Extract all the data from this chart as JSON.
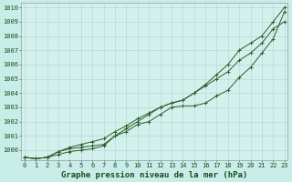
{
  "title": "Graphe pression niveau de la mer (hPa)",
  "background_color": "#c8ede8",
  "plot_bg_color": "#d4f0ec",
  "grid_color": "#a8d8d0",
  "line_color": "#2a5e2a",
  "x_values": [
    0,
    1,
    2,
    3,
    4,
    5,
    6,
    7,
    8,
    9,
    10,
    11,
    12,
    13,
    14,
    15,
    16,
    17,
    18,
    19,
    20,
    21,
    22,
    23
  ],
  "line_top": [
    999.5,
    999.4,
    999.5,
    999.7,
    999.9,
    1000.0,
    1000.1,
    1000.3,
    1001.0,
    1001.5,
    1002.0,
    1002.5,
    1003.0,
    1003.3,
    1003.5,
    1004.0,
    1004.6,
    1005.3,
    1006.0,
    1007.0,
    1007.5,
    1008.0,
    1009.0,
    1010.0
  ],
  "line_mid": [
    999.5,
    999.4,
    999.5,
    999.9,
    1000.2,
    1000.4,
    1000.6,
    1000.8,
    1001.3,
    1001.7,
    1002.2,
    1002.6,
    1003.0,
    1003.3,
    1003.5,
    1004.0,
    1004.5,
    1005.0,
    1005.5,
    1006.3,
    1006.8,
    1007.5,
    1008.5,
    1009.0
  ],
  "line_bot": [
    999.5,
    999.4,
    999.5,
    999.9,
    1000.1,
    1000.2,
    1000.3,
    1000.4,
    1001.0,
    1001.3,
    1001.8,
    1002.0,
    1002.5,
    1003.0,
    1003.1,
    1003.1,
    1003.3,
    1003.8,
    1004.2,
    1005.1,
    1005.8,
    1006.8,
    1007.8,
    1009.7
  ],
  "ylim": [
    999.3,
    1010.3
  ],
  "yticks": [
    1000,
    1001,
    1002,
    1003,
    1004,
    1005,
    1006,
    1007,
    1008,
    1009,
    1010
  ],
  "xlim": [
    -0.3,
    23.3
  ],
  "figsize": [
    3.2,
    2.0
  ],
  "dpi": 100,
  "tick_fontsize": 5.0,
  "label_fontsize": 6.5,
  "marker_size": 2.5,
  "line_width": 0.7,
  "tick_color": "#1a4a1a",
  "spine_color": "#888888"
}
